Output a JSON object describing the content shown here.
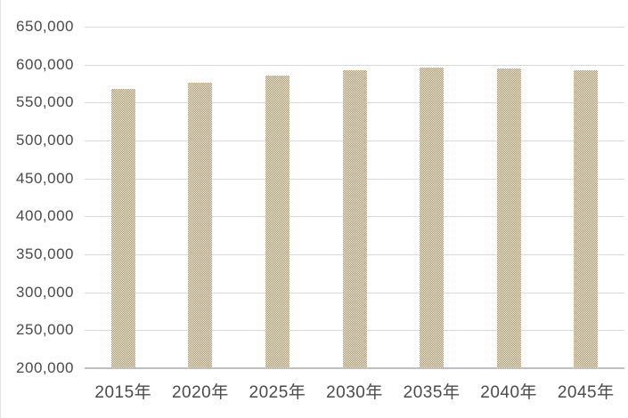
{
  "chart_data": {
    "type": "bar",
    "title": "",
    "categories": [
      "2015年",
      "2020年",
      "2025年",
      "2030年",
      "2035年",
      "2040年",
      "2045年"
    ],
    "values": [
      568000,
      576000,
      586000,
      593000,
      596000,
      595000,
      593000
    ],
    "y_ticks": [
      "650,000",
      "600,000",
      "550,000",
      "500,000",
      "450,000",
      "400,000",
      "350,000",
      "300,000",
      "250,000",
      "200,000"
    ],
    "ylim": [
      200000,
      650000
    ],
    "y_tick_step": 50000,
    "xlabel": "",
    "ylabel": "",
    "legend": "none",
    "grid": "horizontal",
    "colors": {
      "bar_pattern": "#b5834e",
      "bar_background": "#ffffff",
      "gridline": "#d9d9d9",
      "axis_line": "#bfbfbf",
      "labels": "#4a4a4a"
    }
  }
}
